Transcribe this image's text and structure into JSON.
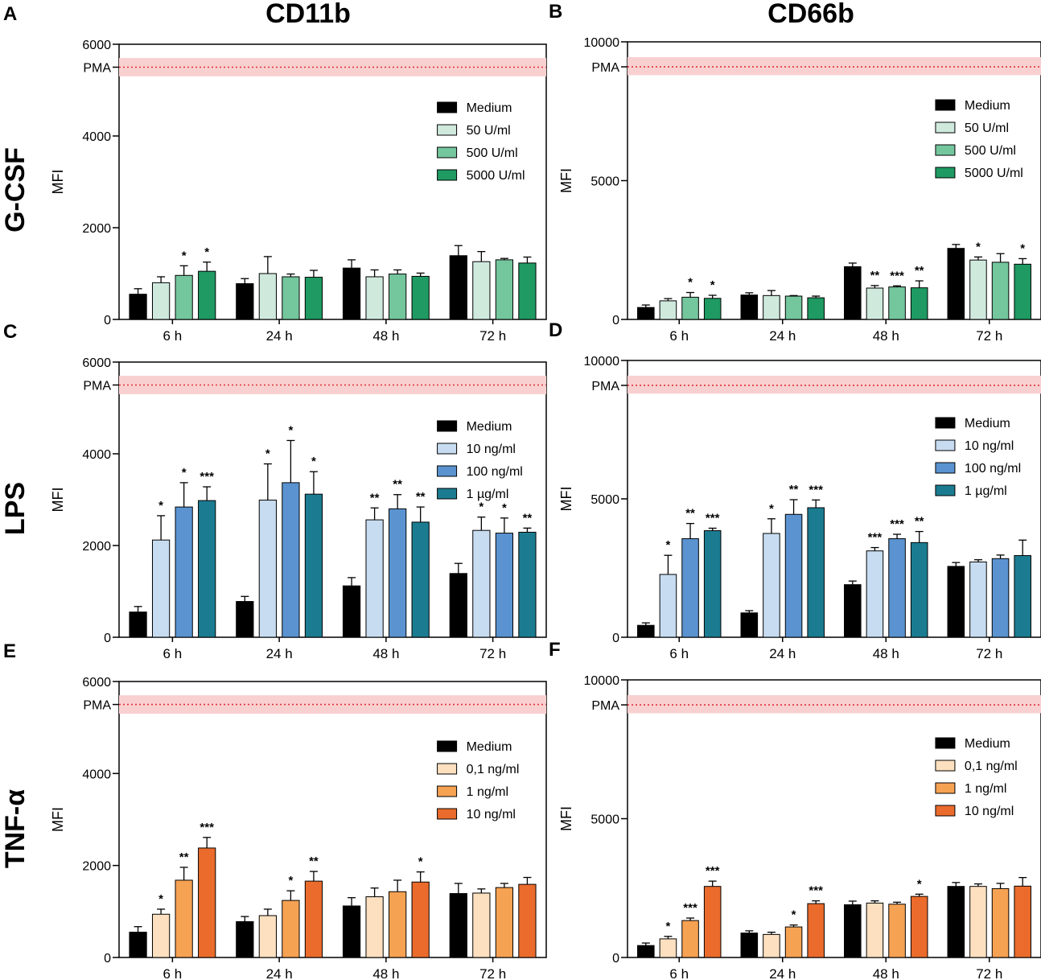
{
  "column_titles": [
    "CD11b",
    "CD66b"
  ],
  "row_titles": [
    "G-CSF",
    "LPS",
    "TNF-α"
  ],
  "chart_data": [
    {
      "panel": "A",
      "type": "bar",
      "marker": "CD11b",
      "stimulus": "G-CSF",
      "ylabel": "MFI",
      "ylim": [
        0,
        6000
      ],
      "yticks": [
        0,
        2000,
        4000,
        6000
      ],
      "pma_label": "PMA",
      "pma_value": 5500,
      "pma_band": [
        5300,
        5700
      ],
      "categories": [
        "6 h",
        "24 h",
        "48 h",
        "72 h"
      ],
      "series": [
        {
          "name": "Medium",
          "color": "#000000",
          "values": [
            550,
            780,
            1120,
            1390
          ],
          "errors": [
            120,
            110,
            180,
            220
          ],
          "sig": [
            "",
            "",
            "",
            ""
          ]
        },
        {
          "name": "50 U/ml",
          "color": "#cfe9dd",
          "values": [
            800,
            1000,
            930,
            1260
          ],
          "errors": [
            130,
            370,
            150,
            220
          ],
          "sig": [
            "",
            "",
            "",
            ""
          ]
        },
        {
          "name": "500 U/ml",
          "color": "#74c69d",
          "values": [
            960,
            930,
            990,
            1300
          ],
          "errors": [
            210,
            60,
            90,
            30
          ],
          "sig": [
            "*",
            "",
            "",
            ""
          ]
        },
        {
          "name": "5000 U/ml",
          "color": "#1e9a62",
          "values": [
            1050,
            920,
            940,
            1230
          ],
          "errors": [
            200,
            150,
            70,
            130
          ],
          "sig": [
            "*",
            "",
            "",
            ""
          ]
        }
      ]
    },
    {
      "panel": "B",
      "type": "bar",
      "marker": "CD66b",
      "stimulus": "G-CSF",
      "ylabel": "MFI",
      "ylim": [
        0,
        10000
      ],
      "yticks": [
        0,
        5000,
        10000
      ],
      "pma_label": "PMA",
      "pma_value": 9100,
      "pma_band": [
        8800,
        9450
      ],
      "categories": [
        "6 h",
        "24 h",
        "48 h",
        "72 h"
      ],
      "series": [
        {
          "name": "Medium",
          "color": "#000000",
          "values": [
            430,
            880,
            1900,
            2560
          ],
          "errors": [
            90,
            80,
            130,
            140
          ],
          "sig": [
            "",
            "",
            "",
            ""
          ]
        },
        {
          "name": "50 U/ml",
          "color": "#cfe9dd",
          "values": [
            670,
            860,
            1130,
            2140
          ],
          "errors": [
            80,
            180,
            90,
            110
          ],
          "sig": [
            "",
            "",
            "**",
            "*"
          ]
        },
        {
          "name": "500 U/ml",
          "color": "#74c69d",
          "values": [
            800,
            840,
            1170,
            2060
          ],
          "errors": [
            170,
            20,
            40,
            310
          ],
          "sig": [
            "*",
            "",
            "***",
            ""
          ]
        },
        {
          "name": "5000 U/ml",
          "color": "#1e9a62",
          "values": [
            760,
            780,
            1140,
            1990
          ],
          "errors": [
            110,
            60,
            250,
            200
          ],
          "sig": [
            "*",
            "",
            "**",
            "*"
          ]
        }
      ]
    },
    {
      "panel": "C",
      "type": "bar",
      "marker": "CD11b",
      "stimulus": "LPS",
      "ylabel": "MFI",
      "ylim": [
        0,
        6000
      ],
      "yticks": [
        0,
        2000,
        4000,
        6000
      ],
      "pma_label": "PMA",
      "pma_value": 5500,
      "pma_band": [
        5300,
        5700
      ],
      "categories": [
        "6 h",
        "24 h",
        "48 h",
        "72 h"
      ],
      "series": [
        {
          "name": "Medium",
          "color": "#000000",
          "values": [
            550,
            780,
            1120,
            1390
          ],
          "errors": [
            120,
            110,
            180,
            220
          ],
          "sig": [
            "",
            "",
            "",
            ""
          ]
        },
        {
          "name": "10 ng/ml",
          "color": "#c7dcf0",
          "values": [
            2120,
            2990,
            2560,
            2330
          ],
          "errors": [
            530,
            790,
            260,
            290
          ],
          "sig": [
            "*",
            "*",
            "**",
            "*"
          ]
        },
        {
          "name": "100 ng/ml",
          "color": "#5a93d0",
          "values": [
            2840,
            3370,
            2800,
            2270
          ],
          "errors": [
            530,
            920,
            310,
            330
          ],
          "sig": [
            "*",
            "*",
            "**",
            "*"
          ]
        },
        {
          "name": "1 µg/ml",
          "color": "#1b7c91",
          "values": [
            2980,
            3120,
            2510,
            2290
          ],
          "errors": [
            300,
            490,
            330,
            90
          ],
          "sig": [
            "***",
            "*",
            "**",
            "**"
          ]
        }
      ]
    },
    {
      "panel": "D",
      "type": "bar",
      "marker": "CD66b",
      "stimulus": "LPS",
      "ylabel": "MFI",
      "ylim": [
        0,
        10000
      ],
      "yticks": [
        0,
        5000,
        10000
      ],
      "pma_label": "PMA",
      "pma_value": 9100,
      "pma_band": [
        8800,
        9450
      ],
      "categories": [
        "6 h",
        "24 h",
        "48 h",
        "72 h"
      ],
      "series": [
        {
          "name": "Medium",
          "color": "#000000",
          "values": [
            430,
            880,
            1900,
            2560
          ],
          "errors": [
            90,
            80,
            130,
            140
          ],
          "sig": [
            "",
            "",
            "",
            ""
          ]
        },
        {
          "name": "10 ng/ml",
          "color": "#c7dcf0",
          "values": [
            2270,
            3750,
            3120,
            2720
          ],
          "errors": [
            690,
            530,
            120,
            80
          ],
          "sig": [
            "*",
            "*",
            "***",
            ""
          ]
        },
        {
          "name": "100 ng/ml",
          "color": "#5a93d0",
          "values": [
            3560,
            4440,
            3560,
            2840
          ],
          "errors": [
            550,
            530,
            160,
            130
          ],
          "sig": [
            "**",
            "**",
            "***",
            ""
          ]
        },
        {
          "name": "1 µg/ml",
          "color": "#1b7c91",
          "values": [
            3850,
            4680,
            3420,
            2950
          ],
          "errors": [
            90,
            280,
            400,
            560
          ],
          "sig": [
            "***",
            "***",
            "**",
            ""
          ]
        }
      ]
    },
    {
      "panel": "E",
      "type": "bar",
      "marker": "CD11b",
      "stimulus": "TNF-α",
      "ylabel": "MFI",
      "ylim": [
        0,
        6000
      ],
      "yticks": [
        0,
        2000,
        4000,
        6000
      ],
      "pma_label": "PMA",
      "pma_value": 5500,
      "pma_band": [
        5300,
        5700
      ],
      "categories": [
        "6 h",
        "24 h",
        "48 h",
        "72 h"
      ],
      "series": [
        {
          "name": "Medium",
          "color": "#000000",
          "values": [
            550,
            780,
            1120,
            1390
          ],
          "errors": [
            120,
            110,
            180,
            220
          ],
          "sig": [
            "",
            "",
            "",
            ""
          ]
        },
        {
          "name": "0,1 ng/ml",
          "color": "#fde0bf",
          "values": [
            940,
            910,
            1320,
            1400
          ],
          "errors": [
            110,
            140,
            190,
            90
          ],
          "sig": [
            "*",
            "",
            "",
            ""
          ]
        },
        {
          "name": "1 ng/ml",
          "color": "#f6a253",
          "values": [
            1680,
            1240,
            1430,
            1520
          ],
          "errors": [
            280,
            210,
            250,
            90
          ],
          "sig": [
            "**",
            "*",
            "",
            ""
          ]
        },
        {
          "name": "10 ng/ml",
          "color": "#ea6b2c",
          "values": [
            2380,
            1660,
            1640,
            1590
          ],
          "errors": [
            230,
            210,
            220,
            150
          ],
          "sig": [
            "***",
            "**",
            "*",
            ""
          ]
        }
      ]
    },
    {
      "panel": "F",
      "type": "bar",
      "marker": "CD66b",
      "stimulus": "TNF-α",
      "ylabel": "MFI",
      "ylim": [
        0,
        10000
      ],
      "yticks": [
        0,
        5000,
        10000
      ],
      "pma_label": "PMA",
      "pma_value": 9100,
      "pma_band": [
        8800,
        9450
      ],
      "categories": [
        "6 h",
        "24 h",
        "48 h",
        "72 h"
      ],
      "series": [
        {
          "name": "Medium",
          "color": "#000000",
          "values": [
            430,
            880,
            1900,
            2560
          ],
          "errors": [
            90,
            80,
            130,
            140
          ],
          "sig": [
            "",
            "",
            "",
            ""
          ]
        },
        {
          "name": "0,1 ng/ml",
          "color": "#fde0bf",
          "values": [
            670,
            830,
            1960,
            2560
          ],
          "errors": [
            90,
            80,
            80,
            90
          ],
          "sig": [
            "*",
            "",
            "",
            ""
          ]
        },
        {
          "name": "1 ng/ml",
          "color": "#f6a253",
          "values": [
            1330,
            1100,
            1920,
            2480
          ],
          "errors": [
            90,
            70,
            70,
            190
          ],
          "sig": [
            "***",
            "*",
            "",
            ""
          ]
        },
        {
          "name": "10 ng/ml",
          "color": "#ea6b2c",
          "values": [
            2560,
            1940,
            2200,
            2570
          ],
          "errors": [
            190,
            100,
            80,
            310
          ],
          "sig": [
            "***",
            "***",
            "*",
            ""
          ]
        }
      ]
    }
  ]
}
